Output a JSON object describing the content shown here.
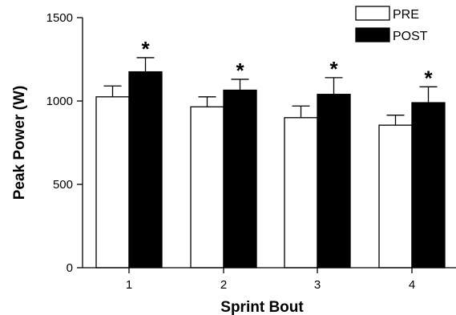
{
  "chart_data": {
    "type": "bar",
    "xlabel": "Sprint Bout",
    "ylabel": "Peak Power (W)",
    "categories": [
      "1",
      "2",
      "3",
      "4"
    ],
    "ylim": [
      0,
      1500
    ],
    "yticks": [
      "0",
      "500",
      "1000",
      "1500"
    ],
    "grid": false,
    "legend_position": "top-right",
    "series": [
      {
        "name": "PRE",
        "color": "#ffffff",
        "values": [
          1025,
          965,
          900,
          855
        ],
        "errors": [
          65,
          60,
          70,
          60
        ],
        "significance": [
          "",
          "",
          "",
          ""
        ]
      },
      {
        "name": "POST",
        "color": "#000000",
        "values": [
          1175,
          1065,
          1040,
          990
        ],
        "errors": [
          85,
          65,
          100,
          95
        ],
        "significance": [
          "*",
          "*",
          "*",
          "*"
        ]
      }
    ]
  }
}
